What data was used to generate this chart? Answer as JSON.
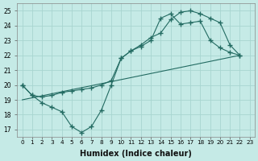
{
  "xlabel": "Humidex (Indice chaleur)",
  "xlim": [
    -0.5,
    23.5
  ],
  "ylim": [
    16.5,
    25.5
  ],
  "xticks": [
    0,
    1,
    2,
    3,
    4,
    5,
    6,
    7,
    8,
    9,
    10,
    11,
    12,
    13,
    14,
    15,
    16,
    17,
    18,
    19,
    20,
    21,
    22,
    23
  ],
  "yticks": [
    17,
    18,
    19,
    20,
    21,
    22,
    23,
    24,
    25
  ],
  "bg_color": "#c5eae6",
  "grid_color": "#a8d5d0",
  "line_color": "#236b62",
  "lines": [
    {
      "x": [
        0,
        1,
        2,
        3,
        4,
        5,
        6,
        7,
        8,
        9,
        10,
        11,
        12,
        13,
        14,
        15,
        16,
        17,
        18,
        19,
        20,
        21,
        22
      ],
      "y": [
        20,
        19.3,
        18.8,
        18.5,
        18.2,
        17.2,
        16.8,
        17.2,
        18.3,
        20.0,
        21.8,
        22.3,
        22.6,
        23.0,
        24.5,
        24.8,
        24.1,
        24.2,
        24.3,
        23.0,
        22.5,
        22.2,
        22.0
      ],
      "has_markers": true
    },
    {
      "x": [
        0,
        1,
        2,
        3,
        4,
        5,
        6,
        7,
        8,
        9,
        10,
        11,
        12,
        13,
        14,
        15,
        16,
        17,
        18,
        19,
        20,
        21,
        22
      ],
      "y": [
        20,
        19.3,
        19.2,
        19.3,
        19.5,
        19.6,
        19.7,
        19.8,
        20.0,
        20.3,
        21.8,
        22.3,
        22.7,
        23.2,
        23.5,
        24.4,
        24.9,
        25.0,
        24.8,
        24.5,
        24.2,
        22.7,
        22.0
      ],
      "has_markers": true
    },
    {
      "x": [
        0,
        22
      ],
      "y": [
        19.0,
        22.0
      ],
      "has_markers": false
    }
  ]
}
